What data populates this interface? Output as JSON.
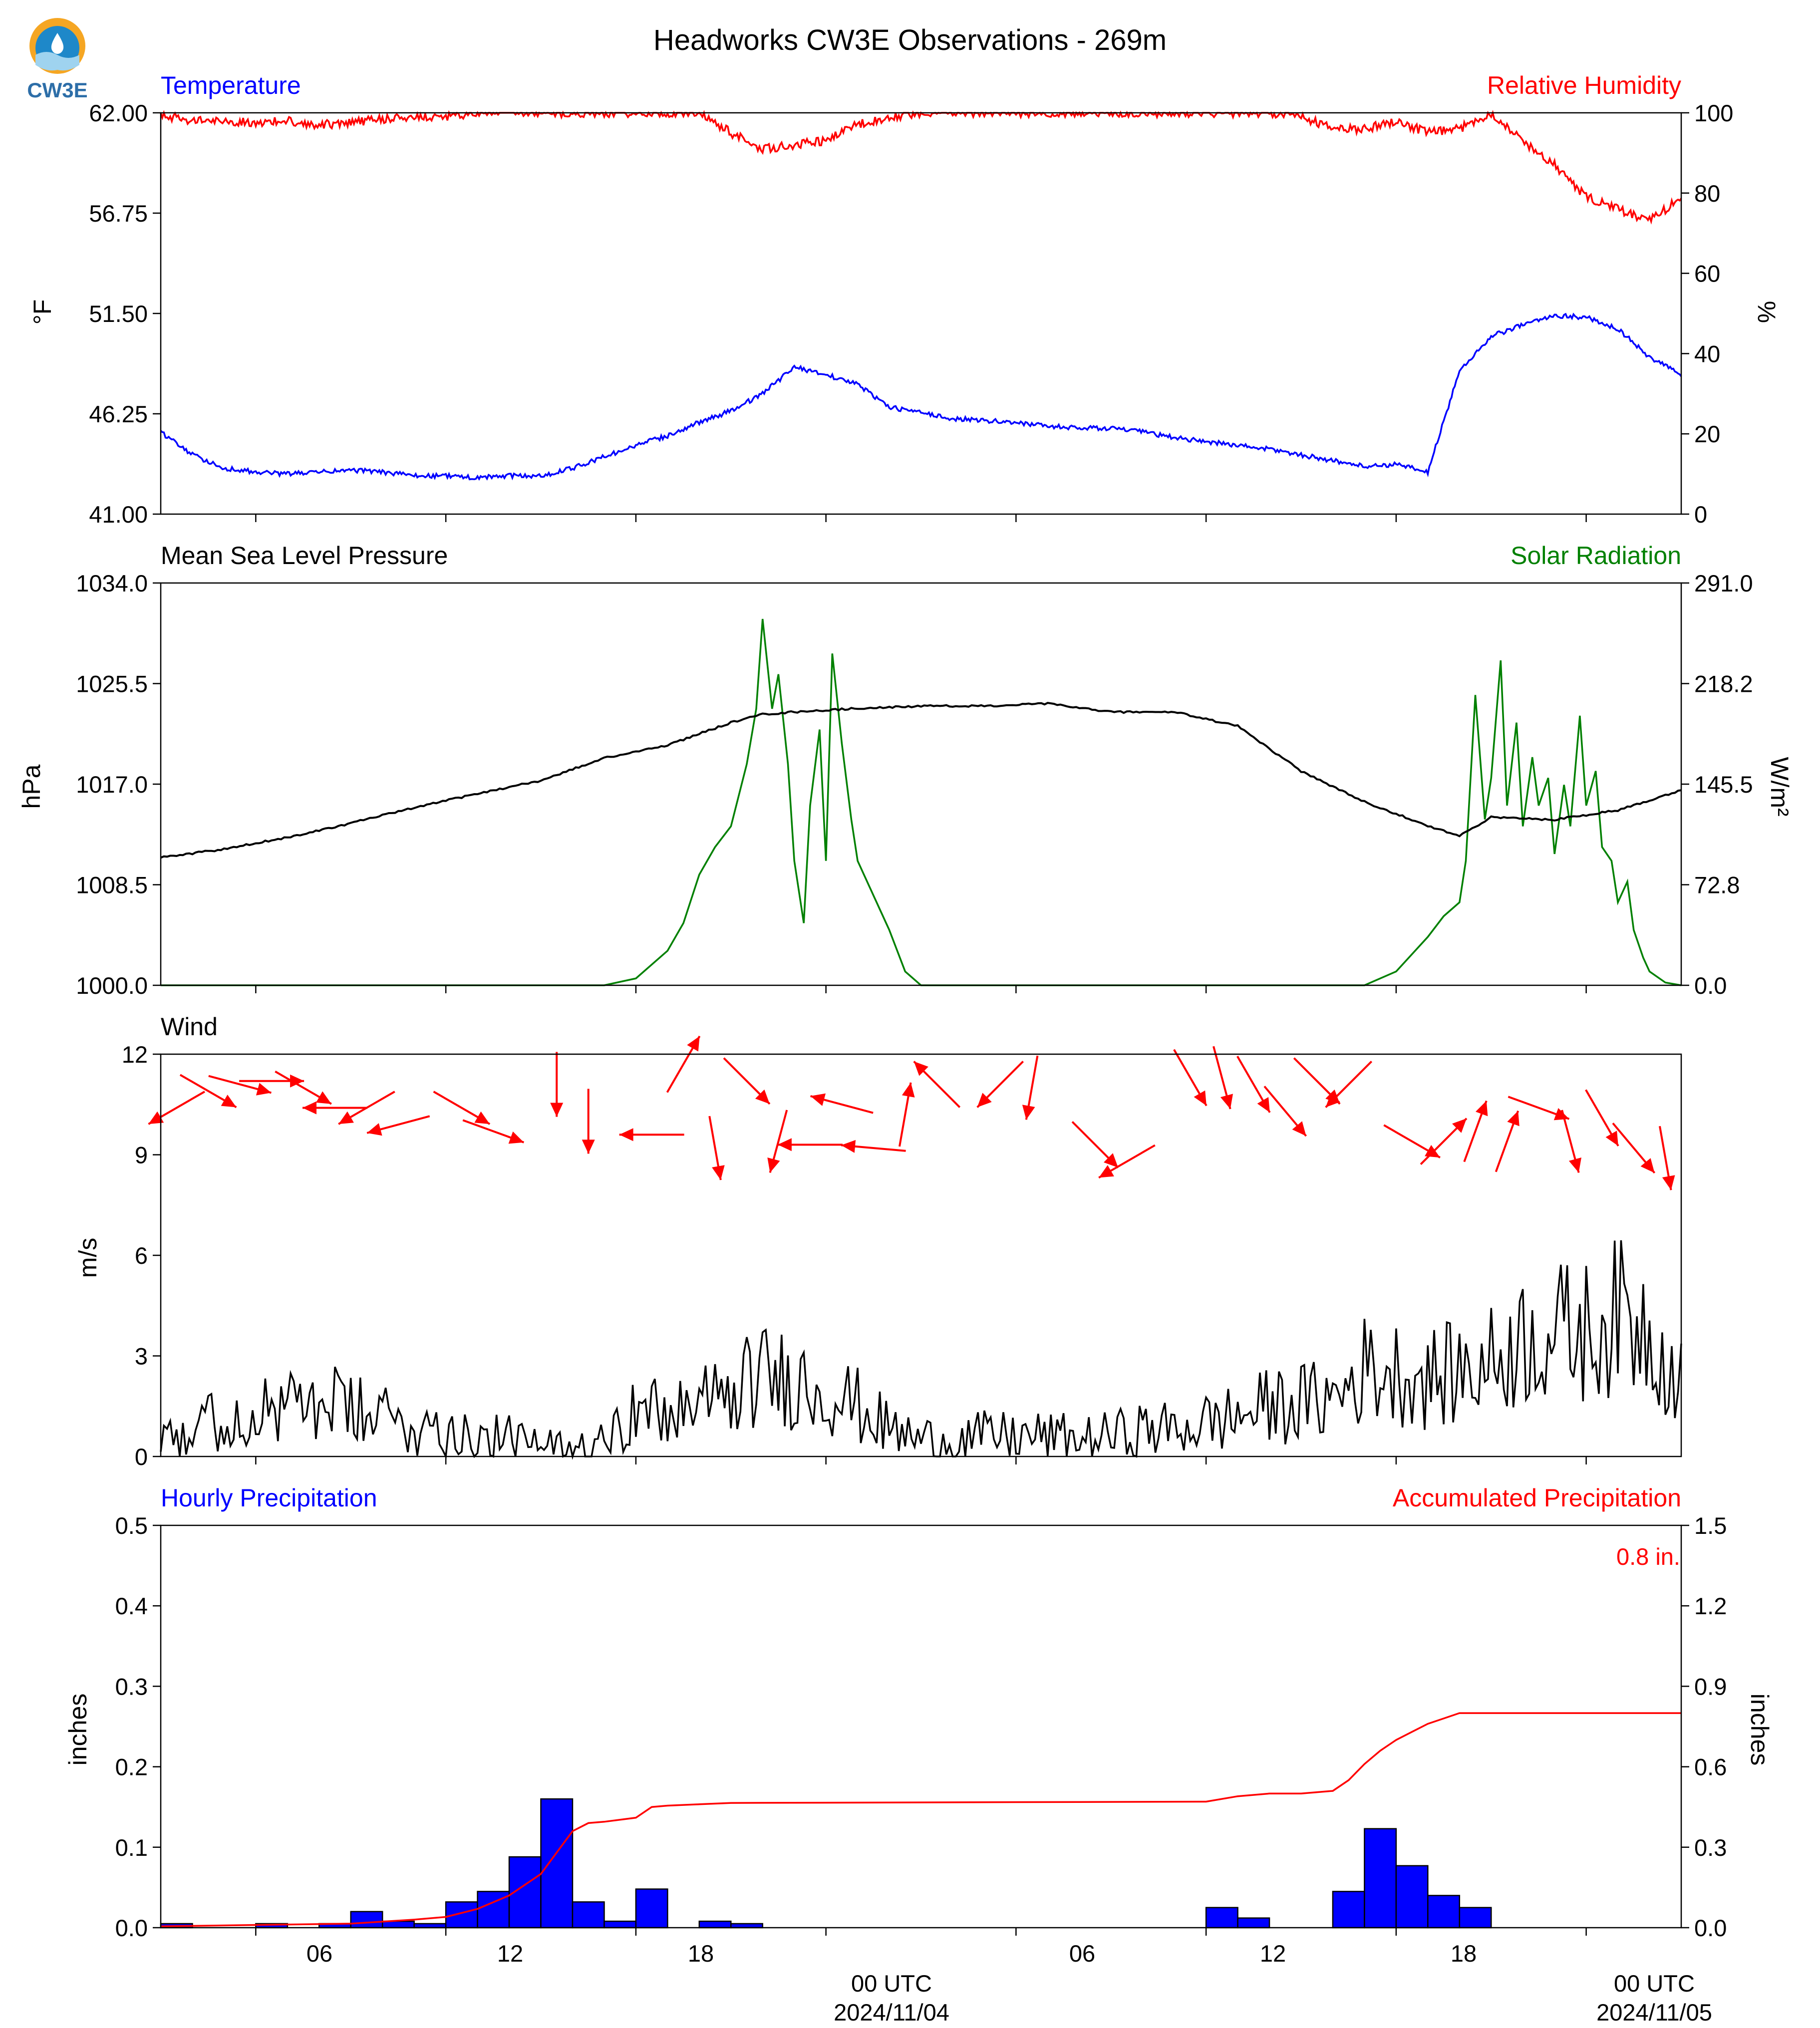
{
  "title": "Headworks CW3E Observations - 269m",
  "logo_text": "CW3E",
  "x_axis": {
    "tick_labels": [
      "06",
      "12",
      "18",
      "00 UTC",
      "06",
      "12",
      "18",
      "00 UTC"
    ],
    "date_labels": [
      "2024/11/04",
      "2024/11/05"
    ]
  },
  "chart_data": [
    {
      "type": "line",
      "panel": "temperature_humidity",
      "x_start": "2024-11-03 01:00 UTC",
      "x_end": "2024-11-05 01:00 UTC",
      "grid": false,
      "left_axis": {
        "title": "Temperature",
        "ylabel": "°F",
        "ylim": [
          41,
          62
        ],
        "tick_labels": [
          "41.00",
          "46.25",
          "51.50",
          "56.75",
          "62.00"
        ]
      },
      "right_axis": {
        "title": "Relative Humidity",
        "ylabel": "%",
        "ylim": [
          0,
          100
        ],
        "tick_labels": [
          "0",
          "20",
          "40",
          "60",
          "80",
          "100"
        ]
      },
      "series": [
        {
          "name": "Temperature",
          "color": "#0000ff",
          "axis": "left",
          "x_hours": [
            0,
            1,
            2,
            3,
            4,
            5,
            6,
            7,
            8,
            9,
            10,
            11,
            12,
            13,
            14,
            15,
            16,
            17,
            18,
            19,
            20,
            21,
            22,
            23,
            24,
            25,
            26,
            27,
            28,
            29,
            30,
            31,
            32,
            33,
            34,
            35,
            36,
            37,
            38,
            39,
            40,
            41,
            42,
            43,
            44,
            45,
            46,
            47,
            48
          ],
          "values": [
            45.3,
            44.1,
            43.4,
            43.2,
            43.1,
            43.2,
            43.3,
            43.2,
            43.0,
            43.0,
            42.9,
            43.0,
            43.0,
            43.4,
            44.0,
            44.6,
            45.1,
            45.8,
            46.4,
            47.3,
            48.7,
            48.3,
            47.8,
            46.6,
            46.3,
            46.0,
            45.9,
            45.8,
            45.6,
            45.5,
            45.5,
            45.3,
            45.0,
            44.8,
            44.6,
            44.4,
            44.1,
            43.8,
            43.5,
            43.6,
            43.2,
            48.5,
            50.3,
            50.9,
            51.4,
            51.3,
            50.7,
            49.2,
            48.3
          ]
        },
        {
          "name": "Relative Humidity",
          "color": "#ff0000",
          "axis": "right",
          "x_hours": [
            0,
            1,
            2,
            3,
            4,
            5,
            6,
            7,
            8,
            9,
            10,
            11,
            12,
            13,
            14,
            15,
            16,
            17,
            18,
            19,
            20,
            21,
            22,
            23,
            24,
            25,
            26,
            27,
            28,
            29,
            30,
            31,
            32,
            33,
            34,
            35,
            36,
            37,
            38,
            39,
            40,
            41,
            42,
            43,
            44,
            45,
            46,
            47,
            48
          ],
          "values": [
            99.5,
            98,
            98,
            97.5,
            98,
            97,
            97.5,
            98.5,
            99,
            99,
            100,
            100,
            100,
            100,
            100,
            100,
            100,
            100,
            95,
            91,
            92,
            93,
            97,
            99,
            100,
            100,
            100,
            100,
            100,
            100,
            100,
            100,
            100,
            100,
            100,
            100,
            99,
            96,
            96,
            98,
            95,
            96,
            100,
            93,
            87,
            79,
            76,
            73,
            79
          ]
        }
      ]
    },
    {
      "type": "line",
      "panel": "pressure_solar",
      "x_start": "2024-11-03 01:00 UTC",
      "x_end": "2024-11-05 01:00 UTC",
      "grid": false,
      "left_axis": {
        "title": "Mean Sea Level Pressure",
        "ylabel": "hPa",
        "ylim": [
          1000,
          1034
        ],
        "tick_labels": [
          "1000.0",
          "1008.5",
          "1017.0",
          "1025.5",
          "1034.0"
        ]
      },
      "right_axis": {
        "title": "Solar Radiation",
        "ylabel": "W/m²",
        "ylim": [
          0,
          291
        ],
        "tick_labels": [
          "0.0",
          "72.8",
          "145.5",
          "218.2",
          "291.0"
        ]
      },
      "series": [
        {
          "name": "Mean Sea Level Pressure",
          "color": "#000000",
          "axis": "left",
          "x_hours": [
            0,
            2,
            4,
            6,
            8,
            10,
            12,
            14,
            16,
            18,
            19,
            20,
            22,
            24,
            26,
            28,
            30,
            32,
            34,
            36,
            38,
            40,
            41,
            42,
            44,
            46,
            48
          ],
          "values": [
            1010.8,
            1011.5,
            1012.5,
            1013.7,
            1015,
            1016.2,
            1017.3,
            1019.2,
            1020.3,
            1022.2,
            1022.9,
            1023.1,
            1023.4,
            1023.6,
            1023.6,
            1023.8,
            1023.1,
            1023.1,
            1021.9,
            1018.1,
            1015.5,
            1013.5,
            1012.6,
            1014.2,
            1014,
            1014.8,
            1016.5
          ]
        },
        {
          "name": "Solar Radiation",
          "color": "#008000",
          "axis": "right",
          "x_hours": [
            0,
            14,
            15,
            16,
            16.5,
            17,
            17.5,
            18,
            18.5,
            18.8,
            19,
            19.3,
            19.5,
            19.8,
            20,
            20.3,
            20.5,
            20.8,
            21,
            21.2,
            21.5,
            21.8,
            22,
            22.5,
            23,
            23.5,
            24,
            38,
            39,
            40,
            40.5,
            41,
            41.2,
            41.5,
            41.8,
            42,
            42.3,
            42.5,
            42.8,
            43,
            43.3,
            43.5,
            43.8,
            44,
            44.3,
            44.5,
            44.8,
            45,
            45.3,
            45.5,
            45.8,
            46,
            46.3,
            46.5,
            46.8,
            47,
            47.5,
            48
          ],
          "values": [
            0,
            0,
            5,
            25,
            45,
            80,
            100,
            115,
            160,
            200,
            265,
            200,
            225,
            160,
            90,
            45,
            130,
            185,
            90,
            240,
            175,
            120,
            90,
            65,
            40,
            10,
            0,
            0,
            10,
            35,
            50,
            60,
            90,
            210,
            120,
            150,
            235,
            130,
            190,
            115,
            165,
            130,
            150,
            95,
            145,
            115,
            195,
            130,
            155,
            100,
            90,
            60,
            75,
            40,
            20,
            10,
            2,
            0
          ]
        }
      ]
    },
    {
      "type": "line",
      "panel": "wind",
      "x_start": "2024-11-03 01:00 UTC",
      "x_end": "2024-11-05 01:00 UTC",
      "grid": false,
      "title": "Wind",
      "left_axis": {
        "ylabel": "m/s",
        "ylim": [
          0,
          12
        ],
        "tick_labels": [
          "0",
          "3",
          "6",
          "9",
          "12"
        ]
      },
      "series": [
        {
          "name": "Wind Speed",
          "color": "#000000",
          "x_hours": [
            0,
            1,
            2,
            3,
            4,
            5,
            6,
            7,
            8,
            9,
            10,
            11,
            12,
            13,
            14,
            15,
            16,
            17,
            18,
            19,
            20,
            21,
            22,
            23,
            24,
            25,
            26,
            27,
            28,
            29,
            30,
            31,
            32,
            33,
            34,
            35,
            36,
            37,
            38,
            39,
            40,
            41,
            42,
            43,
            44,
            45,
            46,
            47,
            48
          ],
          "values": [
            0.9,
            0.8,
            1.1,
            1.3,
            1.4,
            1.6,
            1.4,
            1.1,
            0.9,
            0.8,
            0.7,
            0.5,
            0.3,
            0.1,
            0.9,
            1.3,
            1.3,
            1.5,
            1.9,
            2.4,
            2.3,
            2.0,
            1.5,
            0.8,
            0.5,
            0.5,
            0.6,
            0.6,
            0.6,
            0.5,
            0.6,
            0.8,
            0.8,
            1.0,
            1.2,
            1.5,
            1.6,
            1.7,
            2.6,
            2.5,
            2.3,
            2.5,
            2.8,
            3.5,
            3.7,
            3.7,
            4.2,
            3.8,
            2.3
          ]
        }
      ],
      "wind_direction_arrows": {
        "color": "#ff0000",
        "x_hours": [
          0.5,
          1.5,
          2.5,
          3.5,
          4.5,
          5.5,
          6.5,
          7.5,
          9.5,
          10.5,
          12.5,
          13.5,
          15.5,
          16.5,
          17.5,
          18.5,
          19.5,
          20.5,
          21.5,
          22.5,
          23.5,
          24.5,
          26.5,
          27.5,
          29.5,
          30.5,
          32.5,
          33.5,
          34.5,
          35.5,
          36.5,
          37.5,
          39.5,
          40.5,
          41.5,
          42.5,
          43.5,
          44.5,
          45.5,
          46.5,
          47.5
        ],
        "speed_ms": [
          10.4,
          10.9,
          11.1,
          11.2,
          11.0,
          10.4,
          10.4,
          9.9,
          10.4,
          9.7,
          11.1,
          10.0,
          9.6,
          11.7,
          9.2,
          11.2,
          9.4,
          9.3,
          10.5,
          9.2,
          10.2,
          11.1,
          11.1,
          11.0,
          9.3,
          8.8,
          11.3,
          11.3,
          11.1,
          10.3,
          11.2,
          11.1,
          9.4,
          9.4,
          9.7,
          9.4,
          10.4,
          9.4,
          10.1,
          9.2,
          8.9
        ],
        "direction_deg": [
          60,
          300,
          285,
          270,
          300,
          90,
          60,
          75,
          300,
          290,
          0,
          0,
          90,
          210,
          350,
          315,
          15,
          90,
          105,
          95,
          190,
          135,
          45,
          10,
          315,
          60,
          330,
          345,
          330,
          320,
          315,
          45,
          300,
          225,
          200,
          200,
          290,
          345,
          330,
          320,
          350
        ]
      }
    },
    {
      "type": "bar",
      "panel": "precipitation",
      "x_start": "2024-11-03 01:00 UTC",
      "x_end": "2024-11-05 01:00 UTC",
      "grid": false,
      "left_axis": {
        "title": "Hourly Precipitation",
        "ylabel": "inches",
        "ylim": [
          0,
          0.5
        ],
        "tick_labels": [
          "0.0",
          "0.1",
          "0.2",
          "0.3",
          "0.4",
          "0.5"
        ]
      },
      "right_axis": {
        "title": "Accumulated Precipitation",
        "ylabel": "inches",
        "ylim": [
          0,
          1.5
        ],
        "tick_labels": [
          "0.0",
          "0.3",
          "0.6",
          "0.9",
          "1.2",
          "1.5"
        ]
      },
      "total_label": "0.8 in.",
      "series": [
        {
          "name": "Hourly Precipitation",
          "color": "#0000ff",
          "bar_start_hours": [
            0,
            1,
            2,
            3,
            4,
            5,
            6,
            7,
            8,
            9,
            10,
            11,
            12,
            13,
            14,
            15,
            16,
            17,
            18,
            19,
            20,
            21,
            22,
            23,
            24,
            25,
            26,
            27,
            28,
            29,
            30,
            31,
            32,
            33,
            34,
            35,
            36,
            37,
            38,
            39,
            40,
            41,
            42,
            43,
            44,
            45,
            46,
            47
          ],
          "values": [
            0.005,
            0,
            0,
            0.005,
            0,
            0.005,
            0.02,
            0.008,
            0.005,
            0.032,
            0.045,
            0.088,
            0.16,
            0.032,
            0.008,
            0.048,
            0,
            0.008,
            0.005,
            0,
            0,
            0,
            0,
            0,
            0,
            0,
            0,
            0,
            0,
            0,
            0,
            0,
            0,
            0.025,
            0.012,
            0,
            0,
            0.045,
            0.123,
            0.077,
            0.04,
            0.025,
            0,
            0,
            0,
            0,
            0,
            0
          ]
        },
        {
          "name": "Accumulated Precipitation",
          "color": "#ff0000",
          "x_hours": [
            0,
            6,
            8,
            9,
            10,
            11,
            12,
            12.5,
            13,
            13.5,
            14,
            15,
            15.5,
            16,
            17,
            18,
            33,
            34,
            35,
            36,
            37,
            37.5,
            38,
            38.5,
            39,
            39.5,
            40,
            40.5,
            41,
            42,
            48
          ],
          "values": [
            0.005,
            0.015,
            0.03,
            0.04,
            0.07,
            0.12,
            0.2,
            0.28,
            0.36,
            0.39,
            0.395,
            0.41,
            0.45,
            0.455,
            0.46,
            0.465,
            0.47,
            0.49,
            0.5,
            0.5,
            0.51,
            0.55,
            0.61,
            0.66,
            0.7,
            0.73,
            0.76,
            0.78,
            0.8,
            0.8,
            0.8
          ]
        }
      ]
    }
  ]
}
